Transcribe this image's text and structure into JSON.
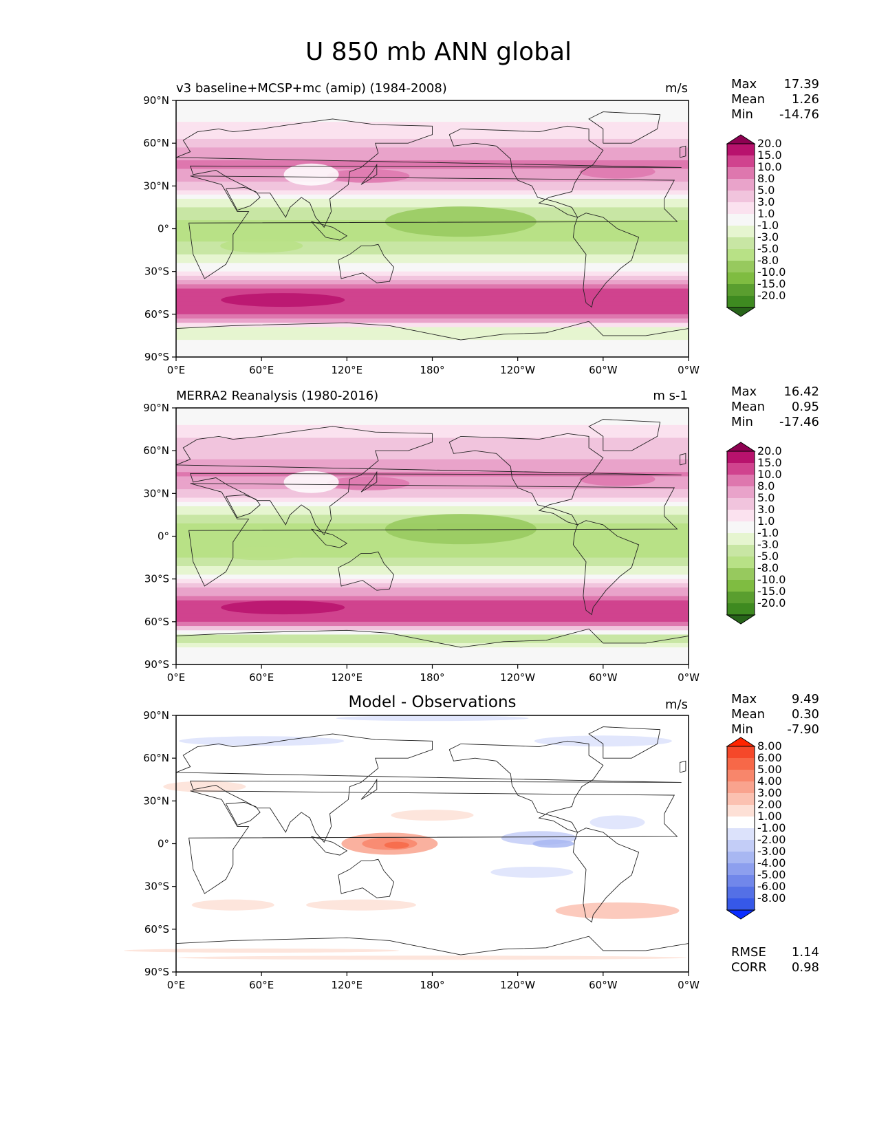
{
  "figure_title": "U 850 mb ANN global",
  "panels": [
    {
      "title": "v3 baseline+MCSP+mc (amip) (1984-2008)",
      "title_pos": "left",
      "units": "m/s",
      "stats": [
        {
          "label": "Max",
          "value": "17.39"
        },
        {
          "label": "Mean",
          "value": "1.26"
        },
        {
          "label": "Min",
          "value": "-14.76"
        }
      ],
      "colorbar": {
        "levels": [
          "20.0",
          "15.0",
          "10.0",
          "8.0",
          "5.0",
          "3.0",
          "1.0",
          "-1.0",
          "-3.0",
          "-5.0",
          "-8.0",
          "-10.0",
          "-15.0",
          "-20.0"
        ],
        "colors": [
          "#8e0152",
          "#b8126d",
          "#d0438e",
          "#de77ae",
          "#e9a3ca",
          "#f1c4dd",
          "#fbe2ef",
          "#f7f7f7",
          "#e6f5d0",
          "#c8e6a4",
          "#b8e186",
          "#97c95e",
          "#7fbc41",
          "#5a9e2f",
          "#3e8a20",
          "#276419"
        ]
      }
    },
    {
      "title": "MERRA2 Reanalysis (1980-2016)",
      "title_pos": "left",
      "units": "m s-1",
      "stats": [
        {
          "label": "Max",
          "value": "16.42"
        },
        {
          "label": "Mean",
          "value": "0.95"
        },
        {
          "label": "Min",
          "value": "-17.46"
        }
      ],
      "colorbar": {
        "levels": [
          "20.0",
          "15.0",
          "10.0",
          "8.0",
          "5.0",
          "3.0",
          "1.0",
          "-1.0",
          "-3.0",
          "-5.0",
          "-8.0",
          "-10.0",
          "-15.0",
          "-20.0"
        ],
        "colors": [
          "#8e0152",
          "#b8126d",
          "#d0438e",
          "#de77ae",
          "#e9a3ca",
          "#f1c4dd",
          "#fbe2ef",
          "#f7f7f7",
          "#e6f5d0",
          "#c8e6a4",
          "#b8e186",
          "#97c95e",
          "#7fbc41",
          "#5a9e2f",
          "#3e8a20",
          "#276419"
        ]
      }
    },
    {
      "title": "Model - Observations",
      "title_pos": "center",
      "units": "m/s",
      "stats": [
        {
          "label": "Max",
          "value": "9.49"
        },
        {
          "label": "Mean",
          "value": "0.30"
        },
        {
          "label": "Min",
          "value": "-7.90"
        }
      ],
      "extra_stats": [
        {
          "label": "RMSE",
          "value": "1.14"
        },
        {
          "label": "CORR",
          "value": "0.98"
        }
      ],
      "colorbar": {
        "levels": [
          "8.00",
          "6.00",
          "5.00",
          "4.00",
          "3.00",
          "2.00",
          "1.00",
          "-1.00",
          "-2.00",
          "-3.00",
          "-4.00",
          "-5.00",
          "-6.00",
          "-8.00"
        ],
        "colors": [
          "#ff2400",
          "#f5482a",
          "#f76848",
          "#f8866b",
          "#f9a38e",
          "#fbc1b1",
          "#fde0d6",
          "#ffffff",
          "#dce2fb",
          "#c3cdf7",
          "#a8b7f2",
          "#8d9fee",
          "#7187ea",
          "#5470e6",
          "#3658e8",
          "#0a2dff"
        ]
      }
    }
  ],
  "axes": {
    "xticks": [
      "0°E",
      "60°E",
      "120°E",
      "180°",
      "120°W",
      "60°W",
      "0°W"
    ],
    "yticks": [
      "90°N",
      "60°N",
      "30°N",
      "0°",
      "30°S",
      "60°S",
      "90°S"
    ]
  },
  "chart_data": [
    {
      "type": "heatmap",
      "title": "v3 baseline+MCSP+mc (amip) (1984-2008)",
      "variable": "U 850 mb ANN",
      "units": "m/s",
      "x_range": [
        0,
        360
      ],
      "y_range": [
        -90,
        90
      ],
      "zonal_mean_profile": {
        "lat": [
          80,
          60,
          45,
          30,
          15,
          0,
          -15,
          -30,
          -45,
          -50,
          -60,
          -70,
          -80
        ],
        "u": [
          0,
          4,
          9,
          3,
          -4,
          -6,
          -4,
          2,
          12,
          14,
          9,
          -3,
          0
        ]
      },
      "max": 17.39,
      "mean": 1.26,
      "min": -14.76
    },
    {
      "type": "heatmap",
      "title": "MERRA2 Reanalysis (1980-2016)",
      "variable": "U 850 mb ANN",
      "units": "m s-1",
      "x_range": [
        0,
        360
      ],
      "y_range": [
        -90,
        90
      ],
      "zonal_mean_profile": {
        "lat": [
          80,
          60,
          45,
          30,
          15,
          0,
          -15,
          -30,
          -45,
          -50,
          -60,
          -70,
          -80
        ],
        "u": [
          2,
          4,
          8,
          3,
          -4,
          -7,
          -5,
          1,
          11,
          13,
          9,
          -5,
          0
        ]
      },
      "max": 16.42,
      "mean": 0.95,
      "min": -17.46
    },
    {
      "type": "heatmap",
      "title": "Model - Observations",
      "variable": "U 850 mb ANN difference",
      "units": "m/s",
      "x_range": [
        0,
        360
      ],
      "y_range": [
        -90,
        90
      ],
      "max": 9.49,
      "mean": 0.3,
      "min": -7.9,
      "rmse": 1.14,
      "corr": 0.98
    }
  ]
}
